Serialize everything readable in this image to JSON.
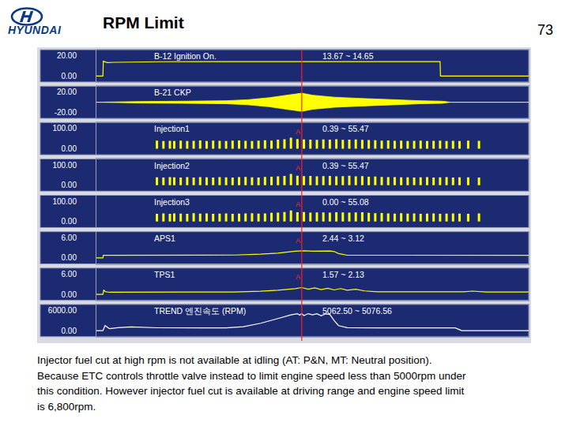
{
  "header": {
    "logo": "HYUNDAI",
    "title": "RPM Limit",
    "page": "73"
  },
  "caption": [
    "Injector fuel cut at high rpm is not available at idling (AT: P&N, MT: Neutral position).",
    "Because ETC controls throttle valve instead to limit engine speed less than 5000rpm under",
    "this condition. However injector fuel cut is available at driving range and engine speed limit",
    "is 6,800rpm."
  ],
  "chart_data": {
    "type": "strip",
    "xlim": [
      0,
      100
    ],
    "tick_labels": "y",
    "grid": false,
    "cursor": 47.5,
    "panels": [
      {
        "type": "line",
        "name": "B-12 Ignition On.",
        "range_text": "13.67 ~ 14.65",
        "color": "#ffff00",
        "ylim": [
          -6,
          26
        ],
        "yticks": [
          {
            "value": 20,
            "label": "20.00"
          },
          {
            "value": 0,
            "label": "0.00"
          }
        ],
        "x": [
          0,
          1.5,
          1.6,
          2.5,
          4,
          8,
          15,
          47,
          79.5,
          79.6,
          100
        ],
        "values": [
          0,
          0,
          14.6,
          13.2,
          13.5,
          13.9,
          14.1,
          14.2,
          14.2,
          0,
          0
        ]
      },
      {
        "type": "band",
        "name": "B-21 CKP",
        "color": "#ffff00",
        "ylim": [
          -32,
          32
        ],
        "yticks": [
          {
            "value": 20,
            "label": "20.00"
          },
          {
            "value": -20,
            "label": "-20.00"
          }
        ],
        "x": [
          0,
          5,
          10,
          20,
          30,
          35,
          40,
          44,
          47.5,
          50,
          55,
          60,
          65,
          70,
          75,
          80,
          82,
          100
        ],
        "upper": [
          0,
          1,
          1.5,
          2,
          3,
          5,
          9,
          14,
          18,
          14,
          10,
          8,
          6,
          4,
          3,
          2,
          0,
          0
        ],
        "lower": [
          0,
          -1,
          -1.5,
          -2,
          -3,
          -5,
          -9,
          -14,
          -18,
          -14,
          -10,
          -8,
          -6,
          -4,
          -3,
          -2,
          0,
          0
        ]
      },
      {
        "type": "pulse",
        "name": "Injection1",
        "range_text": "0.39 ~ 55.47",
        "cursor_label": "A",
        "color": "#ffff00",
        "ylim": [
          -30,
          130
        ],
        "yticks": [
          {
            "value": 100,
            "label": "100.00"
          },
          {
            "value": 0,
            "label": "0.00"
          }
        ],
        "x": [
          14,
          15.5,
          17,
          18,
          19.5,
          21,
          22.5,
          24,
          25.5,
          27,
          28.5,
          30,
          31.5,
          33,
          34.5,
          36,
          37.5,
          39,
          40.5,
          42,
          43.5,
          45,
          46.5,
          48,
          49.5,
          51,
          52.5,
          54,
          55.5,
          57,
          58.5,
          60,
          61.5,
          63,
          64.5,
          66,
          67.5,
          69,
          70.5,
          72,
          73.5,
          75,
          76.5,
          78,
          79.5,
          81,
          82.5,
          84,
          86,
          88.5
        ],
        "values": [
          40,
          38,
          39,
          38,
          40,
          38,
          39,
          41,
          38,
          40,
          39,
          38,
          40,
          41,
          39,
          38,
          40,
          42,
          40,
          45,
          47,
          55,
          48,
          46,
          45,
          44,
          46,
          45,
          47,
          44,
          45,
          46,
          44,
          43,
          42,
          40,
          41,
          39,
          40,
          38,
          39,
          40,
          38,
          39,
          40,
          38,
          39,
          38,
          40,
          39
        ]
      },
      {
        "type": "pulse",
        "name": "Injection2",
        "range_text": "0.39 ~ 55.47",
        "cursor_label": "A",
        "color": "#ffff00",
        "ylim": [
          -30,
          130
        ],
        "yticks": [
          {
            "value": 100,
            "label": "100.00"
          },
          {
            "value": 0,
            "label": "0.00"
          }
        ],
        "x": [
          14,
          15.5,
          17,
          18,
          19.5,
          21,
          22.5,
          24,
          25.5,
          27,
          28.5,
          30,
          31.5,
          33,
          34.5,
          36,
          37.5,
          39,
          40.5,
          42,
          43.5,
          45,
          46.5,
          48,
          49.5,
          51,
          52.5,
          54,
          55.5,
          57,
          58.5,
          60,
          61.5,
          63,
          64.5,
          66,
          67.5,
          69,
          70.5,
          72,
          73.5,
          75,
          76.5,
          78,
          79.5,
          81,
          82.5,
          84,
          86,
          88.5
        ],
        "values": [
          39,
          38,
          40,
          39,
          38,
          40,
          38,
          40,
          39,
          38,
          40,
          39,
          38,
          40,
          41,
          39,
          38,
          41,
          42,
          44,
          46,
          55,
          47,
          45,
          46,
          44,
          45,
          46,
          44,
          45,
          47,
          44,
          45,
          42,
          43,
          41,
          40,
          40,
          39,
          39,
          38,
          39,
          40,
          38,
          39,
          40,
          38,
          39,
          39,
          38
        ]
      },
      {
        "type": "pulse",
        "name": "Injection3",
        "range_text": "0.00 ~ 55.08",
        "cursor_label": "A",
        "color": "#ffff00",
        "ylim": [
          -30,
          130
        ],
        "yticks": [
          {
            "value": 100,
            "label": "100.00"
          },
          {
            "value": 0,
            "label": "0.00"
          }
        ],
        "x": [
          14,
          15.5,
          17,
          18,
          19.5,
          21,
          22.5,
          24,
          25.5,
          27,
          28.5,
          30,
          31.5,
          33,
          34.5,
          36,
          37.5,
          39,
          40.5,
          42,
          43.5,
          45,
          46.5,
          48,
          49.5,
          51,
          52.5,
          54,
          55.5,
          57,
          58.5,
          60,
          61.5,
          63,
          64.5,
          66,
          67.5,
          69,
          70.5,
          72,
          73.5,
          75,
          76.5,
          78,
          79.5,
          81,
          82.5,
          84,
          86,
          88.5
        ],
        "values": [
          38,
          40,
          38,
          40,
          39,
          38,
          41,
          39,
          40,
          38,
          39,
          40,
          38,
          39,
          40,
          41,
          39,
          40,
          43,
          44,
          47,
          55,
          46,
          47,
          44,
          45,
          45,
          44,
          46,
          45,
          44,
          45,
          46,
          43,
          41,
          42,
          40,
          39,
          41,
          39,
          40,
          38,
          39,
          40,
          38,
          39,
          40,
          39,
          38,
          40
        ]
      },
      {
        "type": "line",
        "name": "APS1",
        "range_text": "2.44 ~ 3.12",
        "cursor_label": "A",
        "color": "#ffff00",
        "ylim": [
          -1.8,
          7.8
        ],
        "yticks": [
          {
            "value": 6,
            "label": "6.00"
          },
          {
            "value": 0,
            "label": "0.00"
          }
        ],
        "x": [
          0,
          1.5,
          1.6,
          10,
          25,
          32,
          38,
          42,
          46,
          48,
          50,
          52,
          54,
          55,
          56,
          58,
          80,
          100
        ],
        "values": [
          0,
          0,
          0.75,
          0.78,
          0.8,
          0.85,
          1.1,
          1.4,
          2.0,
          2.1,
          2.0,
          2.1,
          2.05,
          1.9,
          1.3,
          0.8,
          0.78,
          0.78
        ]
      },
      {
        "type": "line",
        "name": "TPS1",
        "range_text": "1.57 ~ 2.13",
        "cursor_label": "A",
        "color": "#ffff00",
        "ylim": [
          -1.8,
          7.8
        ],
        "yticks": [
          {
            "value": 6,
            "label": "6.00"
          },
          {
            "value": 0,
            "label": "0.00"
          }
        ],
        "x": [
          0,
          1.5,
          1.7,
          2,
          3,
          10,
          25,
          32,
          38,
          42,
          46,
          47.5,
          49,
          50.5,
          52,
          53.5,
          55,
          56.5,
          58,
          60,
          62,
          65,
          80,
          85,
          87,
          90,
          100
        ],
        "values": [
          0,
          0,
          1.3,
          0.8,
          0.6,
          0.62,
          0.65,
          0.7,
          0.9,
          1.2,
          1.7,
          2.0,
          1.5,
          1.9,
          1.4,
          1.8,
          1.3,
          1.7,
          1.2,
          1.5,
          1.0,
          0.75,
          0.72,
          0.72,
          0.95,
          0.7,
          0.7
        ]
      },
      {
        "type": "line",
        "name": "TREND 엔진속도 (RPM)",
        "range_text": "5062.50 ~ 5076.56",
        "color": "#ffffff",
        "ylim": [
          -1800,
          7800
        ],
        "yticks": [
          {
            "value": 6000,
            "label": "6000.00"
          },
          {
            "value": 0,
            "label": "0.00"
          }
        ],
        "x": [
          0,
          1.5,
          2,
          3,
          5,
          8,
          14,
          20,
          30,
          34,
          38,
          42,
          45,
          46.5,
          47,
          47.5,
          48,
          49,
          50,
          51,
          52,
          53,
          54,
          55,
          56,
          58,
          60,
          65,
          75,
          83,
          84,
          84.5,
          100
        ],
        "values": [
          0,
          0,
          1500,
          600,
          900,
          1100,
          850,
          820,
          830,
          1200,
          2200,
          3600,
          4700,
          5050,
          4600,
          5070,
          4500,
          5060,
          4700,
          5050,
          4400,
          5000,
          4800,
          3000,
          1500,
          900,
          850,
          820,
          810,
          820,
          300,
          0,
          0
        ]
      }
    ]
  }
}
